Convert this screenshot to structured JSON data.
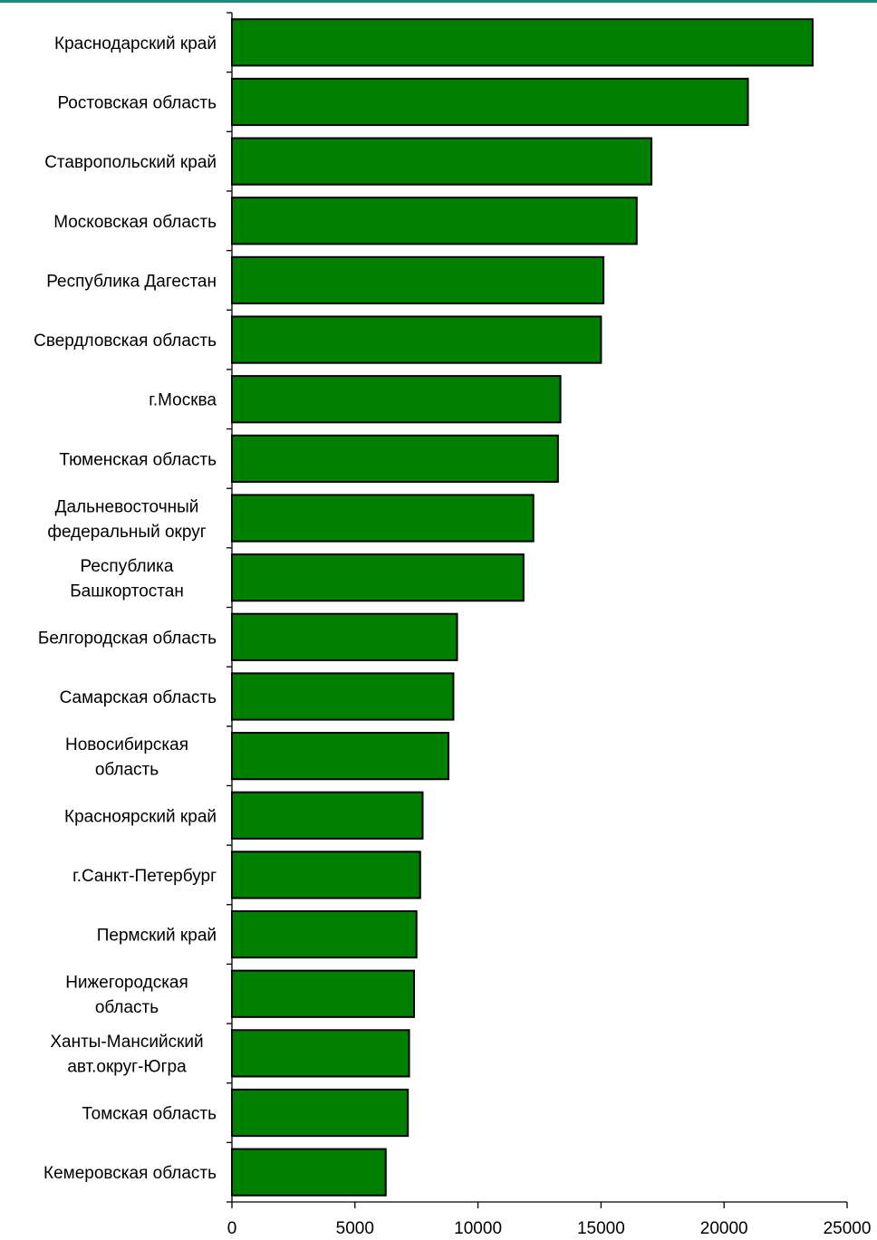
{
  "chart_data": {
    "type": "bar",
    "orientation": "horizontal",
    "bar_color": "#008000",
    "accent_color": "#1a8a7a",
    "categories": [
      [
        "Краснодарский край"
      ],
      [
        "Ростовская область"
      ],
      [
        "Ставропольский край"
      ],
      [
        "Московская область"
      ],
      [
        "Республика Дагестан"
      ],
      [
        "Свердловская область"
      ],
      [
        "г.Москва"
      ],
      [
        "Тюменская область"
      ],
      [
        "Дальневосточный",
        "федеральный округ"
      ],
      [
        "Республика",
        "Башкортостан"
      ],
      [
        "Белгородская область"
      ],
      [
        "Самарская область"
      ],
      [
        "Новосибирская",
        "область"
      ],
      [
        "Красноярский край"
      ],
      [
        "г.Санкт-Петербург"
      ],
      [
        "Пермский край"
      ],
      [
        "Нижегородская",
        "область"
      ],
      [
        "Ханты-Мансийский",
        "авт.округ-Югра"
      ],
      [
        "Томская область"
      ],
      [
        "Кемеровская область"
      ]
    ],
    "values": [
      23600,
      20970,
      17050,
      16450,
      15100,
      15000,
      13350,
      13250,
      12250,
      11850,
      9150,
      9000,
      8800,
      7750,
      7650,
      7500,
      7400,
      7200,
      7150,
      6250
    ],
    "xlim": [
      0,
      25000
    ],
    "x_ticks": [
      0,
      5000,
      10000,
      15000,
      20000,
      25000
    ],
    "x_tick_labels": [
      "0",
      "5000",
      "10000",
      "15000",
      "20000",
      "25000"
    ],
    "grid": false,
    "legend": "none"
  }
}
